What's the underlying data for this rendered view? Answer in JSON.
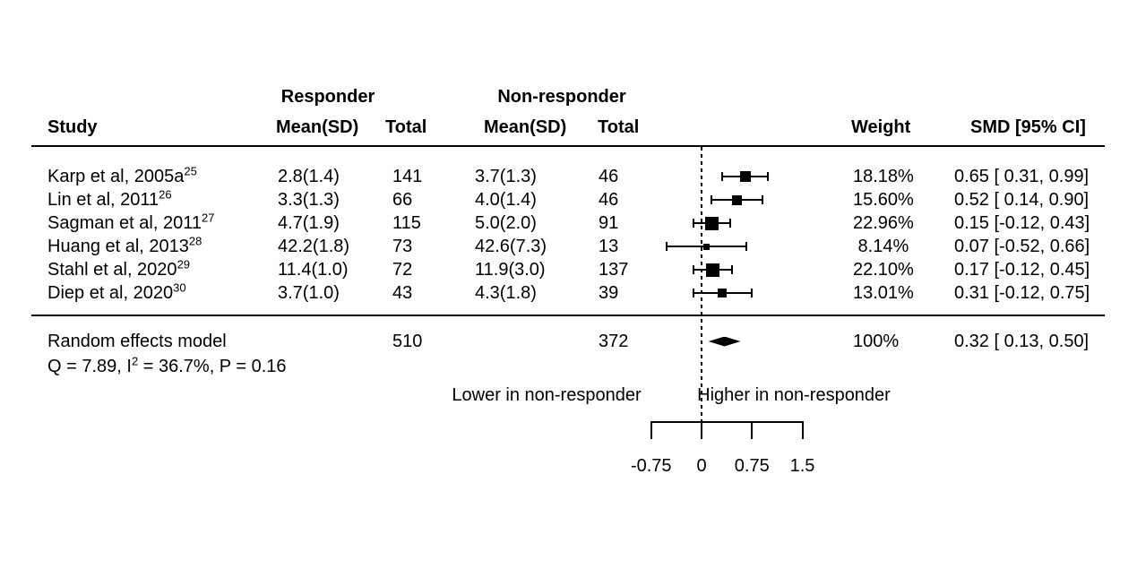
{
  "chart_data": {
    "type": "scatter",
    "subtype": "forest-plot",
    "effect_measure": "SMD",
    "group_headers": {
      "responder": "Responder",
      "nonresponder": "Non-responder"
    },
    "columns": {
      "study": "Study",
      "responder_mean_sd": "Mean(SD)",
      "responder_total": "Total",
      "nonresponder_mean_sd": "Mean(SD)",
      "nonresponder_total": "Total",
      "weight": "Weight",
      "smd_ci": "SMD [95% CI]"
    },
    "studies": [
      {
        "label": "Karp et al, 2005a",
        "ref": "25",
        "responder_mean_sd": "2.8(1.4)",
        "responder_total": "141",
        "nonresponder_mean_sd": "3.7(1.3)",
        "nonresponder_total": "46",
        "weight": "18.18%",
        "weight_value": 18.18,
        "smd_ci": "0.65 [ 0.31, 0.99]",
        "est": 0.65,
        "lo": 0.31,
        "hi": 0.99
      },
      {
        "label": "Lin et al, 2011",
        "ref": "26",
        "responder_mean_sd": "3.3(1.3)",
        "responder_total": "66",
        "nonresponder_mean_sd": "4.0(1.4)",
        "nonresponder_total": "46",
        "weight": "15.60%",
        "weight_value": 15.6,
        "smd_ci": "0.52 [ 0.14, 0.90]",
        "est": 0.52,
        "lo": 0.14,
        "hi": 0.9
      },
      {
        "label": "Sagman et al, 2011",
        "ref": "27",
        "responder_mean_sd": "4.7(1.9)",
        "responder_total": "115",
        "nonresponder_mean_sd": "5.0(2.0)",
        "nonresponder_total": "91",
        "weight": "22.96%",
        "weight_value": 22.96,
        "smd_ci": "0.15 [-0.12, 0.43]",
        "est": 0.15,
        "lo": -0.12,
        "hi": 0.43
      },
      {
        "label": "Huang et al, 2013",
        "ref": "28",
        "responder_mean_sd": "42.2(1.8)",
        "responder_total": "73",
        "nonresponder_mean_sd": "42.6(7.3)",
        "nonresponder_total": "13",
        "weight": " 8.14%",
        "weight_value": 8.14,
        "smd_ci": "0.07 [-0.52, 0.66]",
        "est": 0.07,
        "lo": -0.52,
        "hi": 0.66
      },
      {
        "label": "Stahl et al, 2020",
        "ref": "29",
        "responder_mean_sd": "11.4(1.0)",
        "responder_total": "72",
        "nonresponder_mean_sd": "11.9(3.0)",
        "nonresponder_total": "137",
        "weight": "22.10%",
        "weight_value": 22.1,
        "smd_ci": "0.17 [-0.12, 0.45]",
        "est": 0.17,
        "lo": -0.12,
        "hi": 0.45
      },
      {
        "label": "Diep et al, 2020",
        "ref": "30",
        "responder_mean_sd": "3.7(1.0)",
        "responder_total": "43",
        "nonresponder_mean_sd": "4.3(1.8)",
        "nonresponder_total": "39",
        "weight": "13.01%",
        "weight_value": 13.01,
        "smd_ci": "0.31 [-0.12, 0.75]",
        "est": 0.31,
        "lo": -0.12,
        "hi": 0.75
      }
    ],
    "summary": {
      "label": "Random effects model",
      "responder_total": "510",
      "nonresponder_total": "372",
      "weight": "100%",
      "smd_ci": "0.32 [ 0.13, 0.50]",
      "est": 0.32,
      "lo": 0.13,
      "hi": 0.5
    },
    "heterogeneity": {
      "prefix": "Q = 7.89, I",
      "sup": "2",
      "suffix": " = 36.7%, P = 0.16"
    },
    "axis": {
      "range": [
        -0.75,
        1.5
      ],
      "zero_line": 0,
      "ticks": [
        {
          "value": -0.75,
          "label": "-0.75"
        },
        {
          "value": 0,
          "label": "0"
        },
        {
          "value": 0.75,
          "label": "0.75"
        },
        {
          "value": 1.5,
          "label": "1.5"
        }
      ],
      "left_label": "Lower in non-responder",
      "right_label": "Higher in non-responder"
    },
    "colors": {
      "foreground": "#000000",
      "background": "#ffffff"
    }
  }
}
